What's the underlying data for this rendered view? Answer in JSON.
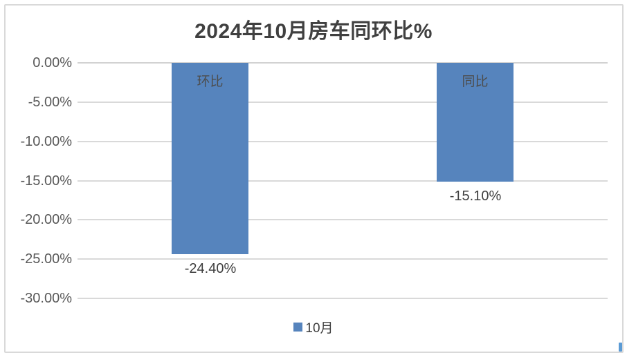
{
  "page": {
    "background": "#ffffff",
    "frame_border_color": "#d9d9d9"
  },
  "chart_data": {
    "type": "bar",
    "title": "2024年10月房车同环比%",
    "categories": [
      "环比",
      "同比"
    ],
    "series": [
      {
        "name": "10月",
        "values": [
          -24.4,
          -15.1
        ]
      }
    ],
    "data_labels": [
      "-24.40%",
      "-15.10%"
    ],
    "yticks": [
      "0.00%",
      "-5.00%",
      "-10.00%",
      "-15.00%",
      "-20.00%",
      "-25.00%",
      "-30.00%"
    ],
    "ylim": [
      -30,
      0
    ],
    "xlabel": "",
    "ylabel": "",
    "grid": true,
    "legend_position": "bottom",
    "bar_color": "#5684bd",
    "gridline_color": "#d9d9d9",
    "category_labels_inside_bar": true
  },
  "legend": {
    "items": [
      {
        "label": "10月",
        "color": "#5684bd"
      }
    ]
  }
}
